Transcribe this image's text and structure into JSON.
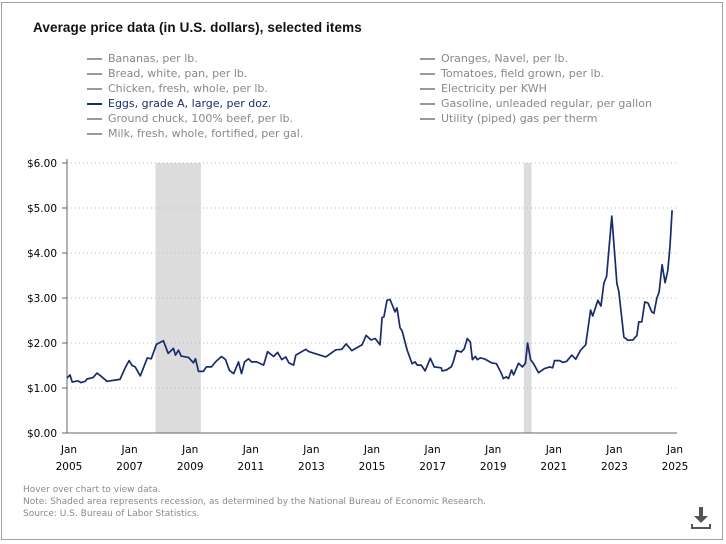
{
  "title": "Average price data (in U.S. dollars), selected items",
  "legend": {
    "left": [
      {
        "label": "Bananas, per lb.",
        "active": false
      },
      {
        "label": "Bread, white, pan, per lb.",
        "active": false
      },
      {
        "label": "Chicken, fresh, whole, per lb.",
        "active": false
      },
      {
        "label": "Eggs, grade A, large, per doz.",
        "active": true
      },
      {
        "label": "Ground chuck, 100% beef, per lb.",
        "active": false
      },
      {
        "label": "Milk, fresh, whole, fortified, per gal.",
        "active": false
      }
    ],
    "right": [
      {
        "label": "Oranges, Navel, per lb.",
        "active": false
      },
      {
        "label": "Tomatoes, field grown, per lb.",
        "active": false
      },
      {
        "label": "Electricity per KWH",
        "active": false
      },
      {
        "label": "Gasoline, unleaded regular, per gallon",
        "active": false
      },
      {
        "label": "Utility (piped) gas per therm",
        "active": false
      }
    ]
  },
  "notes": {
    "hover": "Hover over chart to view data.",
    "note": "Note: Shaded area represents recession, as determined by the National Bureau of Economic Research.",
    "source": "Source: U.S. Bureau of Labor Statistics."
  },
  "download_icon": "download-icon",
  "chart_data": {
    "type": "line",
    "title": "Average price data (in U.S. dollars), selected items",
    "xlabel": "",
    "ylabel": "",
    "xlim": [
      2005,
      2025
    ],
    "ylim": [
      0,
      6
    ],
    "grid": "horizontal dotted",
    "line_color": "#1a2b6b",
    "recession_color": "#dcdcdc",
    "y_ticks": [
      "$0.00",
      "$1.00",
      "$2.00",
      "$3.00",
      "$4.00",
      "$5.00",
      "$6.00"
    ],
    "x_ticks": [
      {
        "month": "Jan",
        "year": "2005"
      },
      {
        "month": "Jan",
        "year": "2007"
      },
      {
        "month": "Jan",
        "year": "2009"
      },
      {
        "month": "Jan",
        "year": "2011"
      },
      {
        "month": "Jan",
        "year": "2013"
      },
      {
        "month": "Jan",
        "year": "2015"
      },
      {
        "month": "Jan",
        "year": "2017"
      },
      {
        "month": "Jan",
        "year": "2019"
      },
      {
        "month": "Jan",
        "year": "2021"
      },
      {
        "month": "Jan",
        "year": "2023"
      },
      {
        "month": "Jan",
        "year": "2025"
      }
    ],
    "recessions": [
      [
        2007.92,
        2009.42
      ],
      [
        2020.08,
        2020.33
      ]
    ],
    "series": [
      {
        "name": "Eggs, grade A, large, per doz.",
        "points": [
          [
            2005.0,
            1.22
          ],
          [
            2005.1,
            1.29
          ],
          [
            2005.17,
            1.13
          ],
          [
            2005.36,
            1.16
          ],
          [
            2005.46,
            1.12
          ],
          [
            2005.6,
            1.15
          ],
          [
            2005.66,
            1.2
          ],
          [
            2005.86,
            1.23
          ],
          [
            2005.99,
            1.33
          ],
          [
            2006.13,
            1.26
          ],
          [
            2006.32,
            1.15
          ],
          [
            2006.52,
            1.17
          ],
          [
            2006.75,
            1.19
          ],
          [
            2006.92,
            1.45
          ],
          [
            2007.05,
            1.61
          ],
          [
            2007.15,
            1.5
          ],
          [
            2007.25,
            1.47
          ],
          [
            2007.42,
            1.27
          ],
          [
            2007.65,
            1.67
          ],
          [
            2007.78,
            1.65
          ],
          [
            2007.95,
            1.97
          ],
          [
            2008.18,
            2.05
          ],
          [
            2008.34,
            1.77
          ],
          [
            2008.51,
            1.88
          ],
          [
            2008.58,
            1.73
          ],
          [
            2008.68,
            1.84
          ],
          [
            2008.77,
            1.71
          ],
          [
            2009.01,
            1.68
          ],
          [
            2009.17,
            1.56
          ],
          [
            2009.24,
            1.65
          ],
          [
            2009.34,
            1.37
          ],
          [
            2009.5,
            1.37
          ],
          [
            2009.6,
            1.47
          ],
          [
            2009.77,
            1.47
          ],
          [
            2009.9,
            1.58
          ],
          [
            2010.1,
            1.7
          ],
          [
            2010.23,
            1.63
          ],
          [
            2010.36,
            1.39
          ],
          [
            2010.5,
            1.32
          ],
          [
            2010.66,
            1.58
          ],
          [
            2010.76,
            1.32
          ],
          [
            2010.86,
            1.58
          ],
          [
            2010.99,
            1.65
          ],
          [
            2011.09,
            1.58
          ],
          [
            2011.26,
            1.58
          ],
          [
            2011.49,
            1.51
          ],
          [
            2011.62,
            1.81
          ],
          [
            2011.82,
            1.7
          ],
          [
            2011.95,
            1.79
          ],
          [
            2012.09,
            1.63
          ],
          [
            2012.22,
            1.69
          ],
          [
            2012.32,
            1.56
          ],
          [
            2012.48,
            1.51
          ],
          [
            2012.55,
            1.73
          ],
          [
            2012.88,
            1.86
          ],
          [
            2012.98,
            1.81
          ],
          [
            2013.21,
            1.76
          ],
          [
            2013.54,
            1.69
          ],
          [
            2013.87,
            1.85
          ],
          [
            2014.07,
            1.86
          ],
          [
            2014.21,
            1.98
          ],
          [
            2014.4,
            1.83
          ],
          [
            2014.74,
            1.96
          ],
          [
            2014.87,
            2.17
          ],
          [
            2015.03,
            2.07
          ],
          [
            2015.17,
            2.1
          ],
          [
            2015.33,
            1.96
          ],
          [
            2015.4,
            2.57
          ],
          [
            2015.46,
            2.58
          ],
          [
            2015.56,
            2.95
          ],
          [
            2015.66,
            2.97
          ],
          [
            2015.83,
            2.69
          ],
          [
            2015.89,
            2.78
          ],
          [
            2015.99,
            2.34
          ],
          [
            2016.06,
            2.27
          ],
          [
            2016.23,
            1.83
          ],
          [
            2016.39,
            1.54
          ],
          [
            2016.49,
            1.58
          ],
          [
            2016.56,
            1.51
          ],
          [
            2016.69,
            1.51
          ],
          [
            2016.82,
            1.38
          ],
          [
            2016.99,
            1.66
          ],
          [
            2017.12,
            1.47
          ],
          [
            2017.35,
            1.45
          ],
          [
            2017.38,
            1.38
          ],
          [
            2017.52,
            1.4
          ],
          [
            2017.68,
            1.47
          ],
          [
            2017.75,
            1.58
          ],
          [
            2017.85,
            1.83
          ],
          [
            2018.01,
            1.8
          ],
          [
            2018.11,
            1.87
          ],
          [
            2018.21,
            2.1
          ],
          [
            2018.31,
            2.02
          ],
          [
            2018.38,
            1.63
          ],
          [
            2018.48,
            1.7
          ],
          [
            2018.54,
            1.63
          ],
          [
            2018.64,
            1.67
          ],
          [
            2018.77,
            1.65
          ],
          [
            2019.01,
            1.56
          ],
          [
            2019.17,
            1.54
          ],
          [
            2019.34,
            1.32
          ],
          [
            2019.4,
            1.21
          ],
          [
            2019.5,
            1.25
          ],
          [
            2019.57,
            1.21
          ],
          [
            2019.67,
            1.4
          ],
          [
            2019.74,
            1.29
          ],
          [
            2019.9,
            1.55
          ],
          [
            2020.03,
            1.47
          ],
          [
            2020.13,
            1.55
          ],
          [
            2020.2,
            2.0
          ],
          [
            2020.3,
            1.63
          ],
          [
            2020.4,
            1.54
          ],
          [
            2020.56,
            1.34
          ],
          [
            2020.76,
            1.43
          ],
          [
            2020.93,
            1.47
          ],
          [
            2021.03,
            1.45
          ],
          [
            2021.09,
            1.61
          ],
          [
            2021.26,
            1.61
          ],
          [
            2021.36,
            1.57
          ],
          [
            2021.49,
            1.59
          ],
          [
            2021.66,
            1.73
          ],
          [
            2021.79,
            1.64
          ],
          [
            2021.95,
            1.84
          ],
          [
            2022.12,
            1.96
          ],
          [
            2022.28,
            2.73
          ],
          [
            2022.35,
            2.6
          ],
          [
            2022.52,
            2.95
          ],
          [
            2022.62,
            2.82
          ],
          [
            2022.72,
            3.33
          ],
          [
            2022.81,
            3.48
          ],
          [
            2022.98,
            4.82
          ],
          [
            2023.15,
            3.32
          ],
          [
            2023.21,
            3.15
          ],
          [
            2023.38,
            2.13
          ],
          [
            2023.51,
            2.06
          ],
          [
            2023.68,
            2.07
          ],
          [
            2023.81,
            2.17
          ],
          [
            2023.87,
            2.47
          ],
          [
            2023.97,
            2.47
          ],
          [
            2024.07,
            2.91
          ],
          [
            2024.17,
            2.89
          ],
          [
            2024.3,
            2.69
          ],
          [
            2024.37,
            2.66
          ],
          [
            2024.47,
            3.0
          ],
          [
            2024.54,
            3.13
          ],
          [
            2024.64,
            3.74
          ],
          [
            2024.74,
            3.34
          ],
          [
            2024.83,
            3.61
          ],
          [
            2024.9,
            4.15
          ],
          [
            2024.97,
            4.95
          ]
        ]
      }
    ]
  }
}
